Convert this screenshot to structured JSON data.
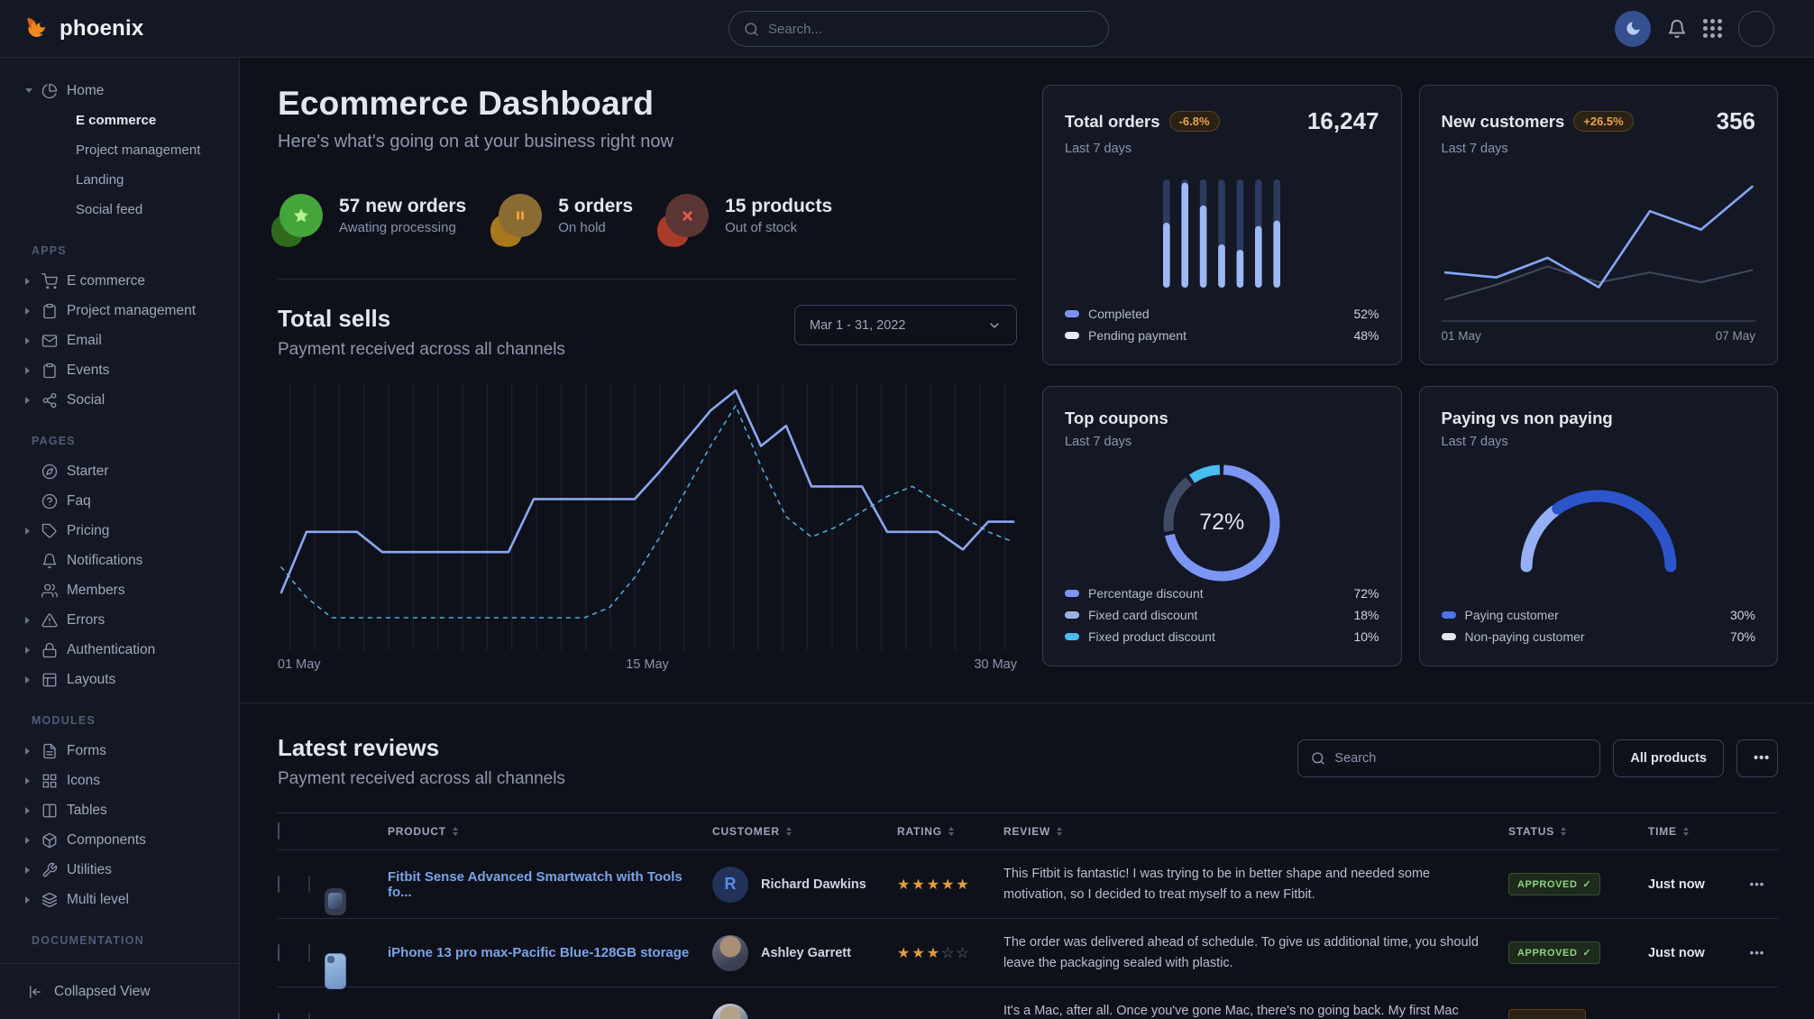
{
  "colors": {
    "background": "#0f111a",
    "panel": "#141824",
    "border": "#343a4e",
    "primary_line": "#8aa7f0",
    "dashed_line": "#4fa9dd",
    "bar_light": "#9db8f7",
    "bar_dark": "#2c3a60",
    "link": "#7aa3e8",
    "warning_badge": "#e8a14f",
    "success_badge": "#8fd382",
    "star": "#e39e3d"
  },
  "navbar": {
    "brand": "phoenix",
    "search_placeholder": "Search...",
    "icons": [
      "moon-icon",
      "bell-icon",
      "apps-grid-icon",
      "user-avatar"
    ]
  },
  "sidebar": {
    "home": {
      "label": "Home",
      "icon": "pie-chart",
      "children": [
        {
          "label": "E commerce",
          "active": true
        },
        {
          "label": "Project management",
          "active": false
        },
        {
          "label": "Landing",
          "active": false
        },
        {
          "label": "Social feed",
          "active": false
        }
      ]
    },
    "sections": [
      {
        "title": "APPS",
        "items": [
          {
            "label": "E commerce",
            "icon": "cart",
            "expandable": true
          },
          {
            "label": "Project management",
            "icon": "clipboard",
            "expandable": true
          },
          {
            "label": "Email",
            "icon": "mail",
            "expandable": true
          },
          {
            "label": "Events",
            "icon": "clipboard",
            "expandable": true
          },
          {
            "label": "Social",
            "icon": "share",
            "expandable": true
          }
        ]
      },
      {
        "title": "PAGES",
        "items": [
          {
            "label": "Starter",
            "icon": "compass",
            "expandable": false
          },
          {
            "label": "Faq",
            "icon": "help-circle",
            "expandable": false
          },
          {
            "label": "Pricing",
            "icon": "tag",
            "expandable": true
          },
          {
            "label": "Notifications",
            "icon": "bell",
            "expandable": false
          },
          {
            "label": "Members",
            "icon": "users",
            "expandable": false
          },
          {
            "label": "Errors",
            "icon": "alert-triangle",
            "expandable": true
          },
          {
            "label": "Authentication",
            "icon": "lock",
            "expandable": true
          },
          {
            "label": "Layouts",
            "icon": "layout",
            "expandable": true
          }
        ]
      },
      {
        "title": "MODULES",
        "items": [
          {
            "label": "Forms",
            "icon": "file-text",
            "expandable": true
          },
          {
            "label": "Icons",
            "icon": "grid",
            "expandable": true
          },
          {
            "label": "Tables",
            "icon": "columns",
            "expandable": true
          },
          {
            "label": "Components",
            "icon": "box",
            "expandable": true
          },
          {
            "label": "Utilities",
            "icon": "wrench",
            "expandable": true
          },
          {
            "label": "Multi level",
            "icon": "layers",
            "expandable": true
          }
        ]
      },
      {
        "title": "DOCUMENTATION",
        "items": []
      }
    ],
    "footer": {
      "label": "Collapsed View",
      "icon": "collapse-left"
    }
  },
  "header": {
    "title": "Ecommerce Dashboard",
    "subtitle": "Here's what's going on at your business right now"
  },
  "stats": [
    {
      "value_label": "57 new orders",
      "sub": "Awating processing",
      "icon": "star",
      "variant": "success"
    },
    {
      "value_label": "5 orders",
      "sub": "On hold",
      "icon": "pause",
      "variant": "warning"
    },
    {
      "value_label": "15 products",
      "sub": "Out of stock",
      "icon": "x-mark",
      "variant": "danger"
    }
  ],
  "total_sells": {
    "title": "Total sells",
    "subtitle": "Payment received across all channels",
    "date_range": "Mar 1 - 31, 2022",
    "x_labels": [
      "01 May",
      "15 May",
      "30 May"
    ]
  },
  "cards": {
    "total_orders": {
      "title": "Total orders",
      "badge": "-6.8%",
      "period": "Last 7 days",
      "value": "16,247",
      "legend": [
        {
          "label": "Completed",
          "value": "52%"
        },
        {
          "label": "Pending payment",
          "value": "48%"
        }
      ]
    },
    "new_customers": {
      "title": "New customers",
      "badge": "+26.5%",
      "period": "Last 7 days",
      "value": "356",
      "x_labels": [
        "01 May",
        "07 May"
      ]
    },
    "top_coupons": {
      "title": "Top coupons",
      "period": "Last 7 days",
      "center_label": "72%",
      "legend": [
        {
          "label": "Percentage discount",
          "value": "72%"
        },
        {
          "label": "Fixed card discount",
          "value": "18%"
        },
        {
          "label": "Fixed product discount",
          "value": "10%"
        }
      ]
    },
    "paying": {
      "title": "Paying vs non paying",
      "period": "Last 7 days",
      "legend": [
        {
          "label": "Paying customer",
          "value": "30%"
        },
        {
          "label": "Non-paying customer",
          "value": "70%"
        }
      ]
    }
  },
  "reviews": {
    "title": "Latest reviews",
    "subtitle": "Payment received across all channels",
    "search_placeholder": "Search",
    "filter_button": "All products",
    "more_label": "•••",
    "columns": [
      "PRODUCT",
      "CUSTOMER",
      "RATING",
      "REVIEW",
      "STATUS",
      "TIME"
    ],
    "rows": [
      {
        "product": "Fitbit Sense Advanced Smartwatch with Tools fo...",
        "customer": "Richard Dawkins",
        "avatar": "initial-R",
        "rating": 5,
        "review": "This Fitbit is fantastic! I was trying to be in better shape and needed some motivation, so I decided to treat myself to a new Fitbit.",
        "status": "APPROVED",
        "status_variant": "success",
        "time": "Just now",
        "thumb": "smartwatch"
      },
      {
        "product": "iPhone 13 pro max-Pacific Blue-128GB storage",
        "customer": "Ashley Garrett",
        "avatar": "photo",
        "rating": 3,
        "review": "The order was delivered ahead of schedule. To give us additional time, you should leave the packaging sealed with plastic.",
        "status": "APPROVED",
        "status_variant": "success",
        "time": "Just now",
        "thumb": "iphone"
      },
      {
        "product": "",
        "customer": "",
        "avatar": "photo",
        "rating": null,
        "review": "It's a Mac, after all. Once you've gone Mac, there's no going back. My first Mac lasted...",
        "status": "",
        "status_variant": "warning",
        "time": "",
        "thumb": "macbook"
      }
    ]
  },
  "chart_data": [
    {
      "id": "total-sells",
      "type": "line",
      "title": "Total sells",
      "x_range": [
        "01 May",
        "30 May"
      ],
      "grid_lines": 30,
      "x_labels": [
        "01 May",
        "15 May",
        "30 May"
      ],
      "ylim": [
        0,
        100
      ],
      "series": [
        {
          "name": "payments",
          "color": "#8aa7f0",
          "width": 2.6,
          "dashed": false,
          "values": [
            20,
            44,
            44,
            44,
            36,
            36,
            36,
            36,
            36,
            36,
            57,
            57,
            57,
            57,
            57,
            68,
            80,
            92,
            100,
            78,
            86,
            62,
            62,
            62,
            44,
            44,
            44,
            37,
            48,
            48
          ]
        },
        {
          "name": "previous period",
          "color": "#4fa9dd",
          "width": 1.6,
          "dashed": true,
          "values": [
            30,
            18,
            10,
            10,
            10,
            10,
            10,
            10,
            10,
            10,
            10,
            10,
            10,
            14,
            26,
            42,
            60,
            78,
            94,
            70,
            50,
            42,
            46,
            52,
            58,
            62,
            56,
            50,
            44,
            40
          ]
        }
      ]
    },
    {
      "id": "total-orders",
      "type": "bar",
      "stacked": true,
      "categories": [
        "d1",
        "d2",
        "d3",
        "d4",
        "d5",
        "d6",
        "d7"
      ],
      "series": [
        {
          "name": "Completed",
          "color": "#9db8f7",
          "values": [
            60,
            97,
            76,
            40,
            35,
            57,
            62
          ]
        },
        {
          "name": "Pending payment",
          "color": "#2c3a60",
          "values": [
            40,
            3,
            24,
            60,
            65,
            43,
            38
          ]
        }
      ],
      "legend": [
        {
          "label": "Completed",
          "value": 52
        },
        {
          "label": "Pending payment",
          "value": 48
        }
      ]
    },
    {
      "id": "new-customers",
      "type": "line",
      "axis_line": true,
      "x_labels": [
        "01 May",
        "07 May"
      ],
      "ylim": [
        0,
        100
      ],
      "series": [
        {
          "name": "new customers",
          "color": "#85a5f2",
          "width": 2.6,
          "dashed": false,
          "values": [
            30,
            26,
            42,
            18,
            80,
            65,
            100
          ]
        },
        {
          "name": "baseline",
          "color": "#414a61",
          "width": 2,
          "dashed": false,
          "values": [
            8,
            20,
            35,
            22,
            30,
            22,
            32
          ]
        }
      ]
    },
    {
      "id": "top-coupons",
      "type": "donut",
      "center_label": "72%",
      "segments": [
        {
          "label": "Percentage discount",
          "value": 72,
          "color": "#7c96f4"
        },
        {
          "label": "Fixed card discount",
          "value": 18,
          "color": "#3e4a66"
        },
        {
          "label": "Fixed product discount",
          "value": 10,
          "color": "#47bdf0"
        }
      ]
    },
    {
      "id": "paying-gauge",
      "type": "gauge",
      "segments": [
        {
          "label": "Paying customer",
          "value": 30,
          "color": "#96b0f6"
        },
        {
          "label": "Non-paying customer",
          "value": 70,
          "color": "#2c55cc"
        }
      ],
      "legend_swatches": [
        "#4a74e8",
        "#e3e6ed"
      ]
    }
  ]
}
